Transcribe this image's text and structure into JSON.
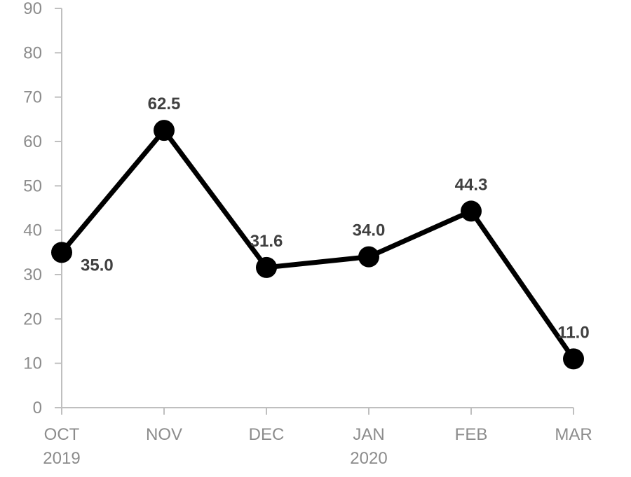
{
  "chart_data": {
    "type": "line",
    "categories": [
      [
        "OCT",
        "2019"
      ],
      [
        "NOV",
        ""
      ],
      [
        "DEC",
        ""
      ],
      [
        "JAN",
        "2020"
      ],
      [
        "FEB",
        ""
      ],
      [
        "MAR",
        ""
      ]
    ],
    "series": [
      {
        "values": [
          35.0,
          62.5,
          31.6,
          34.0,
          44.3,
          11.0
        ],
        "labels": [
          "35.0",
          "62.5",
          "31.6",
          "34.0",
          "44.3",
          "11.0"
        ]
      }
    ],
    "y_ticks": [
      0,
      10,
      20,
      30,
      40,
      50,
      60,
      70,
      80,
      90
    ],
    "ylim": [
      0,
      90
    ],
    "grid": false,
    "legend": "none",
    "line_color": "#000000",
    "axis_color": "#bfbfbf",
    "tick_color": "#8c8c8c",
    "label_color": "#404040"
  }
}
